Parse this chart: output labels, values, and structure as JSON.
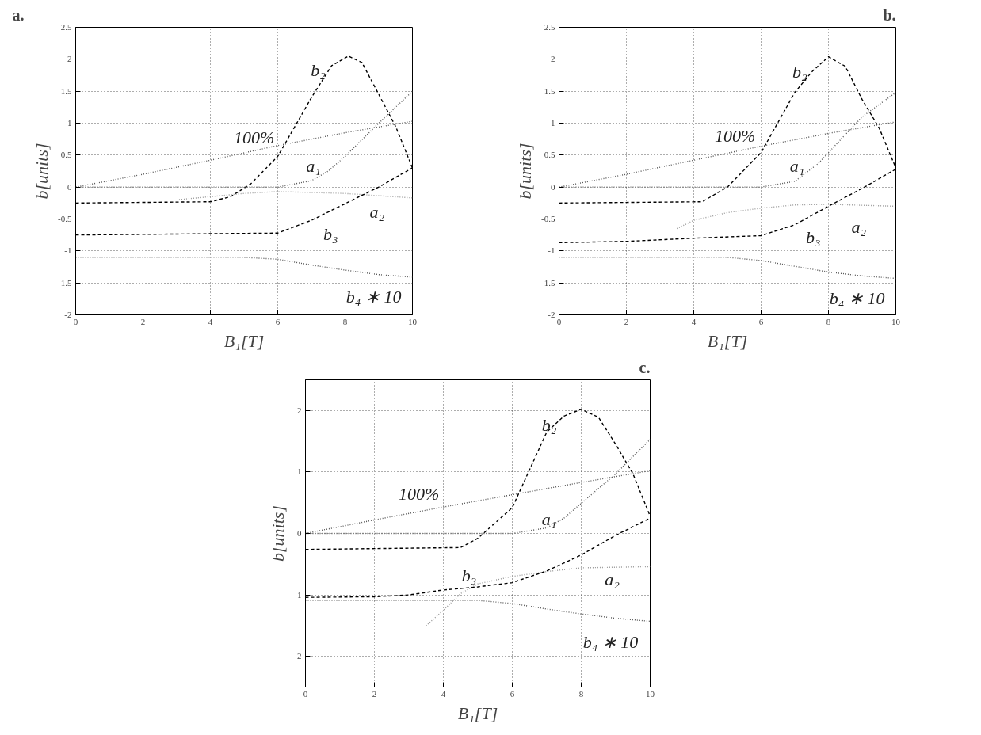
{
  "chart_data": [
    {
      "type": "line",
      "title": "a.",
      "xlabel": "B₁[T]",
      "ylabel": "b[units]",
      "xlim": [
        0,
        10
      ],
      "ylim": [
        -2,
        2.5
      ],
      "xticks": [
        0,
        2,
        4,
        6,
        8,
        10
      ],
      "yticks": [
        -2,
        -1.5,
        -1,
        -0.5,
        0,
        0.5,
        1,
        1.5,
        2,
        2.5
      ],
      "grid": true,
      "series": [
        {
          "name": "100%",
          "color": "#555555",
          "line_style": "dotted",
          "x": [
            0,
            2,
            4,
            6,
            8,
            10
          ],
          "values": [
            0,
            0.2,
            0.42,
            0.65,
            0.85,
            1.03
          ]
        },
        {
          "name": "b₂",
          "color": "#000000",
          "line_style": "dashed",
          "x": [
            0,
            4,
            4.6,
            5.2,
            6,
            7,
            7.6,
            8.1,
            8.5,
            9,
            9.5,
            10
          ],
          "values": [
            -0.25,
            -0.23,
            -0.15,
            0.05,
            0.48,
            1.4,
            1.9,
            2.05,
            1.95,
            1.45,
            0.95,
            0.3
          ]
        },
        {
          "name": "a₁",
          "color": "#555555",
          "line_style": "dotted",
          "x": [
            0,
            6,
            7,
            7.5,
            8,
            9,
            10
          ],
          "values": [
            0,
            0,
            0.1,
            0.25,
            0.48,
            1.0,
            1.5
          ]
        },
        {
          "name": "a₂",
          "color": "#999999",
          "line_style": "dotted",
          "x": [
            3,
            4,
            5,
            6,
            8,
            10
          ],
          "values": [
            -0.2,
            -0.15,
            -0.1,
            -0.07,
            -0.1,
            -0.17
          ]
        },
        {
          "name": "b₃",
          "color": "#000000",
          "line_style": "dashed",
          "x": [
            0,
            6,
            7,
            8,
            9,
            10
          ],
          "values": [
            -0.75,
            -0.72,
            -0.52,
            -0.26,
            0,
            0.3
          ]
        },
        {
          "name": "b₄ ∗ 10",
          "color": "#555555",
          "line_style": "dotted",
          "x": [
            0,
            5,
            6,
            7,
            8,
            9,
            10
          ],
          "values": [
            -1.1,
            -1.1,
            -1.13,
            -1.22,
            -1.3,
            -1.37,
            -1.41
          ]
        }
      ]
    },
    {
      "type": "line",
      "title": "b.",
      "xlabel": "B₁[T]",
      "ylabel": "b[units]",
      "xlim": [
        0,
        10
      ],
      "ylim": [
        -2,
        2.5
      ],
      "xticks": [
        0,
        2,
        4,
        6,
        8,
        10
      ],
      "yticks": [
        -2,
        -1.5,
        -1,
        -0.5,
        0,
        0.5,
        1,
        1.5,
        2,
        2.5
      ],
      "grid": true,
      "series": [
        {
          "name": "100%",
          "color": "#555555",
          "line_style": "dotted",
          "x": [
            0,
            2,
            4,
            6,
            8,
            10
          ],
          "values": [
            0,
            0.2,
            0.42,
            0.64,
            0.84,
            1.02
          ]
        },
        {
          "name": "b₂",
          "color": "#000000",
          "line_style": "dashed",
          "x": [
            0,
            4.25,
            5,
            6,
            7,
            7.5,
            8,
            8.5,
            9,
            9.5,
            10
          ],
          "values": [
            -0.25,
            -0.23,
            0,
            0.54,
            1.48,
            1.8,
            2.04,
            1.89,
            1.37,
            0.93,
            0.3
          ]
        },
        {
          "name": "a₁",
          "color": "#555555",
          "line_style": "dotted",
          "x": [
            0,
            6,
            7,
            7.7,
            8,
            9,
            10
          ],
          "values": [
            0,
            0,
            0.09,
            0.37,
            0.54,
            1.1,
            1.48
          ]
        },
        {
          "name": "a₂",
          "color": "#999999",
          "line_style": "dotted",
          "x": [
            3.5,
            4,
            5,
            6,
            7,
            8,
            10
          ],
          "values": [
            -0.65,
            -0.52,
            -0.4,
            -0.33,
            -0.28,
            -0.27,
            -0.3
          ]
        },
        {
          "name": "b₃",
          "color": "#000000",
          "line_style": "dashed",
          "x": [
            0,
            2,
            4,
            6,
            7,
            8,
            9,
            10
          ],
          "values": [
            -0.87,
            -0.85,
            -0.8,
            -0.76,
            -0.59,
            -0.3,
            -0.02,
            0.28
          ]
        },
        {
          "name": "b₄ ∗ 10",
          "color": "#555555",
          "line_style": "dotted",
          "x": [
            0,
            5,
            6,
            7,
            8,
            9,
            10
          ],
          "values": [
            -1.1,
            -1.1,
            -1.15,
            -1.24,
            -1.33,
            -1.39,
            -1.43
          ]
        }
      ]
    },
    {
      "type": "line",
      "title": "c.",
      "xlabel": "B₁[T]",
      "ylabel": "b[units]",
      "xlim": [
        0,
        10
      ],
      "ylim": [
        -2.5,
        2.5
      ],
      "xticks": [
        0,
        2,
        4,
        6,
        8,
        10
      ],
      "yticks": [
        -2,
        -1,
        0,
        1,
        2
      ],
      "grid": true,
      "series": [
        {
          "name": "100%",
          "color": "#555555",
          "line_style": "dotted",
          "x": [
            0,
            2,
            4,
            6,
            8,
            10
          ],
          "values": [
            0,
            0.22,
            0.43,
            0.63,
            0.83,
            1.02
          ]
        },
        {
          "name": "b₂",
          "color": "#000000",
          "line_style": "dashed",
          "x": [
            0,
            4.5,
            5,
            6,
            7,
            7.5,
            8,
            8.5,
            9,
            9.5,
            10
          ],
          "values": [
            -0.26,
            -0.23,
            -0.08,
            0.42,
            1.65,
            1.91,
            2.02,
            1.89,
            1.45,
            0.97,
            0.28
          ]
        },
        {
          "name": "a₁",
          "color": "#555555",
          "line_style": "dotted",
          "x": [
            0,
            6,
            7,
            7.5,
            8,
            9,
            10
          ],
          "values": [
            0,
            0,
            0.09,
            0.25,
            0.49,
            0.97,
            1.53
          ]
        },
        {
          "name": "a₂",
          "color": "#999999",
          "line_style": "dotted",
          "x": [
            3.5,
            4,
            4.5,
            5,
            6,
            7,
            8,
            10
          ],
          "values": [
            -1.5,
            -1.25,
            -0.98,
            -0.82,
            -0.7,
            -0.62,
            -0.56,
            -0.54
          ]
        },
        {
          "name": "b₃",
          "color": "#000000",
          "line_style": "dashed",
          "x": [
            0,
            2,
            3,
            4,
            5,
            6,
            7,
            8,
            9,
            10
          ],
          "values": [
            -1.04,
            -1.03,
            -1.0,
            -0.92,
            -0.87,
            -0.8,
            -0.61,
            -0.35,
            -0.03,
            0.25
          ]
        },
        {
          "name": "b₄ ∗ 10",
          "color": "#555555",
          "line_style": "dotted",
          "x": [
            0,
            5,
            6,
            7,
            8,
            9,
            10
          ],
          "values": [
            -1.09,
            -1.09,
            -1.14,
            -1.23,
            -1.31,
            -1.38,
            -1.43
          ]
        }
      ]
    }
  ]
}
